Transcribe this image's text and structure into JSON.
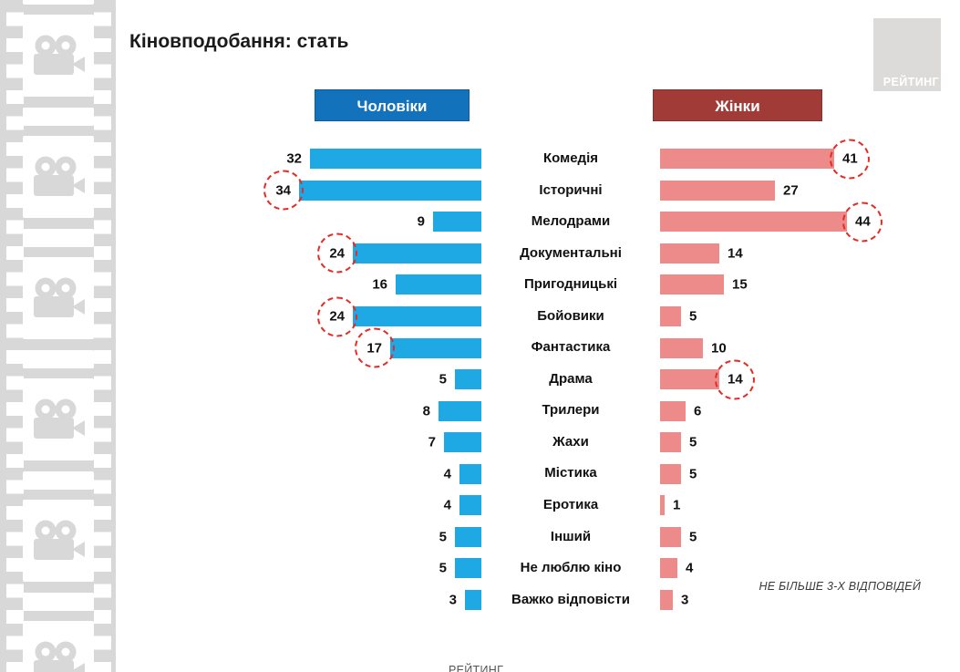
{
  "title": "Кіновподобання: стать",
  "logo": {
    "label": "РЕЙТИНГ"
  },
  "headers": {
    "men": "Чоловіки",
    "women": "Жінки"
  },
  "note": "НЕ БІЛЬШЕ 3-Х ВІДПОВІДЕЙ",
  "footer": {
    "partial_text": "РЕЙТИНГ"
  },
  "colors": {
    "men_bar": "#1FA9E4",
    "men_header": "#1272BC",
    "women_bar": "#EC8B8A",
    "women_header": "#A13B38",
    "circle": "#E62B24",
    "strip": "#D8D8D8",
    "logo_bg": "#DCDBDA"
  },
  "chart_data": {
    "type": "bar",
    "layout": "butterfly",
    "title": "Кіновподобання: стать",
    "note": "НЕ БІЛЬШЕ 3-Х ВІДПОВІДЕЙ",
    "categories": [
      "Комедія",
      "Історичні",
      "Мелодрами",
      "Документальні",
      "Пригодницькі",
      "Бойовики",
      "Фантастика",
      "Драма",
      "Трилери",
      "Жахи",
      "Містика",
      "Еротика",
      "Інший",
      "Не люблю кіно",
      "Важко відповісти"
    ],
    "series": [
      {
        "name": "Чоловіки",
        "color": "#1FA9E4",
        "values": [
          32,
          34,
          9,
          24,
          16,
          24,
          17,
          5,
          8,
          7,
          4,
          4,
          5,
          5,
          3
        ],
        "circled_indices": [
          1,
          3,
          5,
          6
        ],
        "circled_values": [
          34,
          24,
          24,
          17
        ]
      },
      {
        "name": "Жінки",
        "color": "#EC8B8A",
        "values": [
          41,
          27,
          44,
          14,
          15,
          5,
          10,
          14,
          6,
          5,
          5,
          1,
          5,
          4,
          3
        ],
        "circled_indices": [
          0,
          2,
          7
        ],
        "circled_values": [
          41,
          44,
          14
        ]
      }
    ]
  }
}
